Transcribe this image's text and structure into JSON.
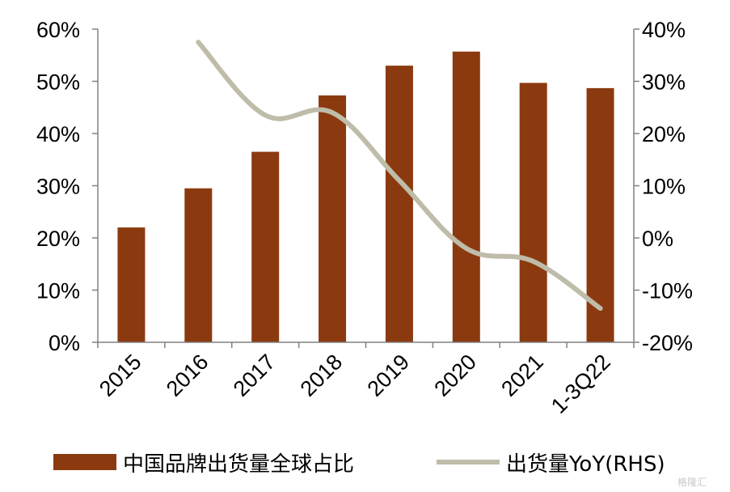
{
  "chart_data": {
    "type": "bar",
    "categories": [
      "2015",
      "2016",
      "2017",
      "2018",
      "2019",
      "2020",
      "2021",
      "1-3Q22"
    ],
    "series": [
      {
        "name": "中国品牌出货量全球占比",
        "kind": "bar",
        "axis": "left",
        "color": "#8B3A0F",
        "values": [
          22,
          29.5,
          36.5,
          47.3,
          53,
          55.7,
          49.7,
          48.7
        ]
      },
      {
        "name": "出货量YoY(RHS)",
        "kind": "line",
        "axis": "right",
        "color": "#BFBCAA",
        "values": [
          null,
          37.5,
          23.5,
          24,
          11,
          -2,
          -4.5,
          -13.5
        ]
      }
    ],
    "left_axis": {
      "ylim": [
        0,
        60
      ],
      "ticks": [
        0,
        10,
        20,
        30,
        40,
        50,
        60
      ],
      "tick_labels": [
        "0%",
        "10%",
        "20%",
        "30%",
        "40%",
        "50%",
        "60%"
      ]
    },
    "right_axis": {
      "ylim": [
        -20,
        40
      ],
      "ticks": [
        -20,
        -10,
        0,
        10,
        20,
        30,
        40
      ],
      "tick_labels": [
        "-20%",
        "-10%",
        "0%",
        "10%",
        "20%",
        "30%",
        "40%"
      ]
    },
    "axis_color": "#808080",
    "grid": false,
    "legend_position": "bottom"
  },
  "watermark": "格隆汇"
}
